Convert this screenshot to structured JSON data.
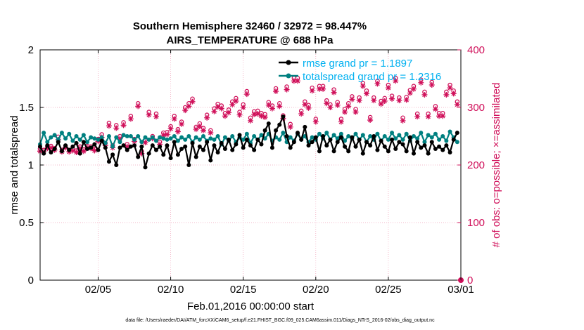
{
  "chart_data": {
    "type": "line",
    "title": "Southern Hemisphere 32460 / 32972 = 98.447%",
    "subtitle": "AIRS_TEMPERATURE @ 688 hPa",
    "xlabel": "Feb.01,2016 00:00:00 start",
    "ylabel": "rmse and totalspread",
    "ylabel_right": "# of obs: o=possible; ×=assimilated",
    "xlim": [
      0,
      29
    ],
    "ylim": [
      0,
      2
    ],
    "ylim_right": [
      0,
      400
    ],
    "x_ticks": [
      {
        "v": 4,
        "label": "02/05"
      },
      {
        "v": 9,
        "label": "02/10"
      },
      {
        "v": 14,
        "label": "02/15"
      },
      {
        "v": 19,
        "label": "02/20"
      },
      {
        "v": 24,
        "label": "02/25"
      },
      {
        "v": 29,
        "label": "03/01"
      }
    ],
    "y_ticks": [
      {
        "v": 0,
        "label": "0"
      },
      {
        "v": 0.5,
        "label": "0.5"
      },
      {
        "v": 1,
        "label": "1"
      },
      {
        "v": 1.5,
        "label": "1.5"
      },
      {
        "v": 2,
        "label": "2"
      }
    ],
    "y_ticks_right": [
      {
        "v": 0,
        "label": "0"
      },
      {
        "v": 100,
        "label": "100"
      },
      {
        "v": 200,
        "label": "200"
      },
      {
        "v": 300,
        "label": "300"
      },
      {
        "v": 400,
        "label": "400"
      }
    ],
    "footnote": "data file: /Users/raeder/DAI/ATM_forcXX/CAM6_setup/f.e21.FHIST_BGC.f09_025.CAM6assim.011/Diags_NTrS_2016-02/obs_diag_output.nc",
    "legend": {
      "placement": "top-right",
      "entries": [
        "rmse grand pr = 1.1897",
        "totalspread grand pr = 1.2316"
      ]
    },
    "colors": {
      "rmse": "#000000",
      "spread": "#008080",
      "obs": "#d0105a",
      "grid": "#f0a0b8"
    },
    "x": [
      0.0,
      0.25,
      0.5,
      0.75,
      1.0,
      1.25,
      1.5,
      1.75,
      2.0,
      2.25,
      2.5,
      2.75,
      3.0,
      3.25,
      3.5,
      3.75,
      4.0,
      4.25,
      4.5,
      4.75,
      5.0,
      5.25,
      5.5,
      5.75,
      6.0,
      6.25,
      6.5,
      6.75,
      7.0,
      7.25,
      7.5,
      7.75,
      8.0,
      8.25,
      8.5,
      8.75,
      9.0,
      9.25,
      9.5,
      9.75,
      10.0,
      10.25,
      10.5,
      10.75,
      11.0,
      11.25,
      11.5,
      11.75,
      12.0,
      12.25,
      12.5,
      12.75,
      13.0,
      13.25,
      13.5,
      13.75,
      14.0,
      14.25,
      14.5,
      14.75,
      15.0,
      15.25,
      15.5,
      15.75,
      16.0,
      16.25,
      16.5,
      16.75,
      17.0,
      17.25,
      17.5,
      17.75,
      18.0,
      18.25,
      18.5,
      18.75,
      19.0,
      19.25,
      19.5,
      19.75,
      20.0,
      20.25,
      20.5,
      20.75,
      21.0,
      21.25,
      21.5,
      21.75,
      22.0,
      22.25,
      22.5,
      22.75,
      23.0,
      23.25,
      23.5,
      23.75,
      24.0,
      24.25,
      24.5,
      24.75,
      25.0,
      25.25,
      25.5,
      25.75,
      26.0,
      26.25,
      26.5,
      26.75,
      27.0,
      27.25,
      27.5,
      27.75,
      28.0,
      28.25,
      28.5,
      28.75
    ],
    "series": [
      {
        "name": "rmse",
        "values": [
          1.16,
          1.1,
          1.17,
          1.11,
          1.14,
          1.2,
          1.12,
          1.17,
          1.13,
          1.16,
          1.19,
          1.1,
          1.2,
          1.14,
          1.15,
          1.18,
          1.13,
          1.21,
          1.15,
          1.03,
          1.09,
          1.0,
          1.15,
          1.17,
          1.13,
          1.16,
          1.17,
          1.07,
          1.16,
          0.98,
          1.1,
          1.17,
          1.13,
          1.16,
          1.09,
          1.17,
          1.06,
          1.2,
          1.09,
          1.14,
          1.16,
          1.0,
          1.19,
          1.07,
          1.16,
          1.13,
          1.2,
          1.04,
          1.17,
          1.11,
          1.19,
          1.14,
          1.22,
          1.13,
          1.18,
          1.26,
          1.15,
          1.22,
          1.17,
          1.13,
          1.22,
          1.18,
          1.3,
          1.36,
          1.15,
          1.3,
          1.35,
          1.42,
          1.25,
          1.15,
          1.2,
          1.28,
          1.22,
          1.33,
          1.17,
          1.2,
          1.24,
          1.12,
          1.25,
          1.17,
          1.22,
          1.12,
          1.2,
          1.24,
          1.16,
          1.12,
          1.24,
          1.16,
          1.22,
          1.1,
          1.2,
          1.17,
          1.25,
          1.13,
          1.21,
          1.16,
          1.12,
          1.22,
          1.14,
          1.2,
          1.18,
          1.12,
          1.24,
          1.1,
          1.2,
          1.15,
          1.17,
          1.1,
          1.2,
          1.14,
          1.16,
          1.13,
          1.17,
          1.11,
          1.22,
          1.28
        ]
      },
      {
        "name": "totalspread",
        "values": [
          1.18,
          1.28,
          1.2,
          1.24,
          1.26,
          1.22,
          1.28,
          1.23,
          1.27,
          1.21,
          1.25,
          1.22,
          1.26,
          1.2,
          1.24,
          1.23,
          1.22,
          1.24,
          1.19,
          1.25,
          1.16,
          1.24,
          1.2,
          1.26,
          1.25,
          1.25,
          1.22,
          1.25,
          1.2,
          1.24,
          1.22,
          1.24,
          1.21,
          1.24,
          1.23,
          1.22,
          1.23,
          1.25,
          1.21,
          1.24,
          1.22,
          1.25,
          1.2,
          1.24,
          1.22,
          1.25,
          1.21,
          1.23,
          1.22,
          1.25,
          1.18,
          1.24,
          1.21,
          1.25,
          1.2,
          1.24,
          1.22,
          1.27,
          1.19,
          1.25,
          1.22,
          1.26,
          1.23,
          1.27,
          1.21,
          1.24,
          1.22,
          1.28,
          1.2,
          1.24,
          1.21,
          1.27,
          1.22,
          1.25,
          1.2,
          1.24,
          1.22,
          1.27,
          1.23,
          1.28,
          1.22,
          1.26,
          1.23,
          1.27,
          1.21,
          1.25,
          1.23,
          1.27,
          1.22,
          1.26,
          1.2,
          1.25,
          1.22,
          1.27,
          1.21,
          1.25,
          1.22,
          1.28,
          1.23,
          1.26,
          1.22,
          1.27,
          1.21,
          1.25,
          1.23,
          1.28,
          1.2,
          1.26,
          1.24,
          1.27,
          1.22,
          1.25,
          1.21,
          1.29,
          1.24,
          1.2
        ]
      }
    ],
    "obs_possible": [
      228,
      226,
      232,
      233,
      229,
      249,
      226,
      233,
      226,
      228,
      225,
      232,
      227,
      233,
      232,
      228,
      245,
      253,
      238,
      273,
      234,
      269,
      250,
      274,
      236,
      285,
      245,
      307,
      224,
      243,
      292,
      250,
      289,
      240,
      256,
      257,
      267,
      285,
      262,
      275,
      300,
      307,
      315,
      266,
      272,
      264,
      287,
      260,
      298,
      306,
      303,
      290,
      296,
      310,
      316,
      292,
      305,
      328,
      282,
      293,
      294,
      290,
      288,
      309,
      303,
      333,
      307,
      286,
      336,
      271,
      351,
      351,
      294,
      310,
      304,
      334,
      280,
      337,
      337,
      312,
      305,
      331,
      309,
      280,
      297,
      307,
      319,
      297,
      317,
      342,
      329,
      283,
      317,
      346,
      311,
      316,
      339,
      320,
      351,
      317,
      282,
      318,
      330,
      337,
      289,
      348,
      327,
      289,
      344,
      302,
      290,
      290,
      327,
      339,
      329,
      310
    ],
    "obs_assimilated": [
      224,
      223,
      229,
      230,
      226,
      244,
      223,
      230,
      223,
      225,
      222,
      229,
      224,
      230,
      229,
      225,
      241,
      248,
      234,
      268,
      230,
      264,
      246,
      269,
      232,
      280,
      241,
      302,
      220,
      239,
      287,
      246,
      284,
      236,
      252,
      253,
      263,
      280,
      258,
      271,
      295,
      302,
      310,
      262,
      267,
      260,
      282,
      256,
      293,
      301,
      298,
      285,
      291,
      305,
      311,
      287,
      300,
      323,
      277,
      288,
      289,
      285,
      283,
      304,
      298,
      328,
      302,
      281,
      331,
      266,
      346,
      346,
      289,
      305,
      299,
      329,
      275,
      332,
      332,
      307,
      300,
      326,
      304,
      275,
      292,
      302,
      314,
      292,
      312,
      337,
      324,
      278,
      312,
      341,
      306,
      311,
      334,
      315,
      346,
      312,
      277,
      313,
      325,
      332,
      284,
      343,
      322,
      284,
      339,
      297,
      285,
      285,
      322,
      334,
      324,
      305
    ],
    "obs_end_value": 0
  }
}
